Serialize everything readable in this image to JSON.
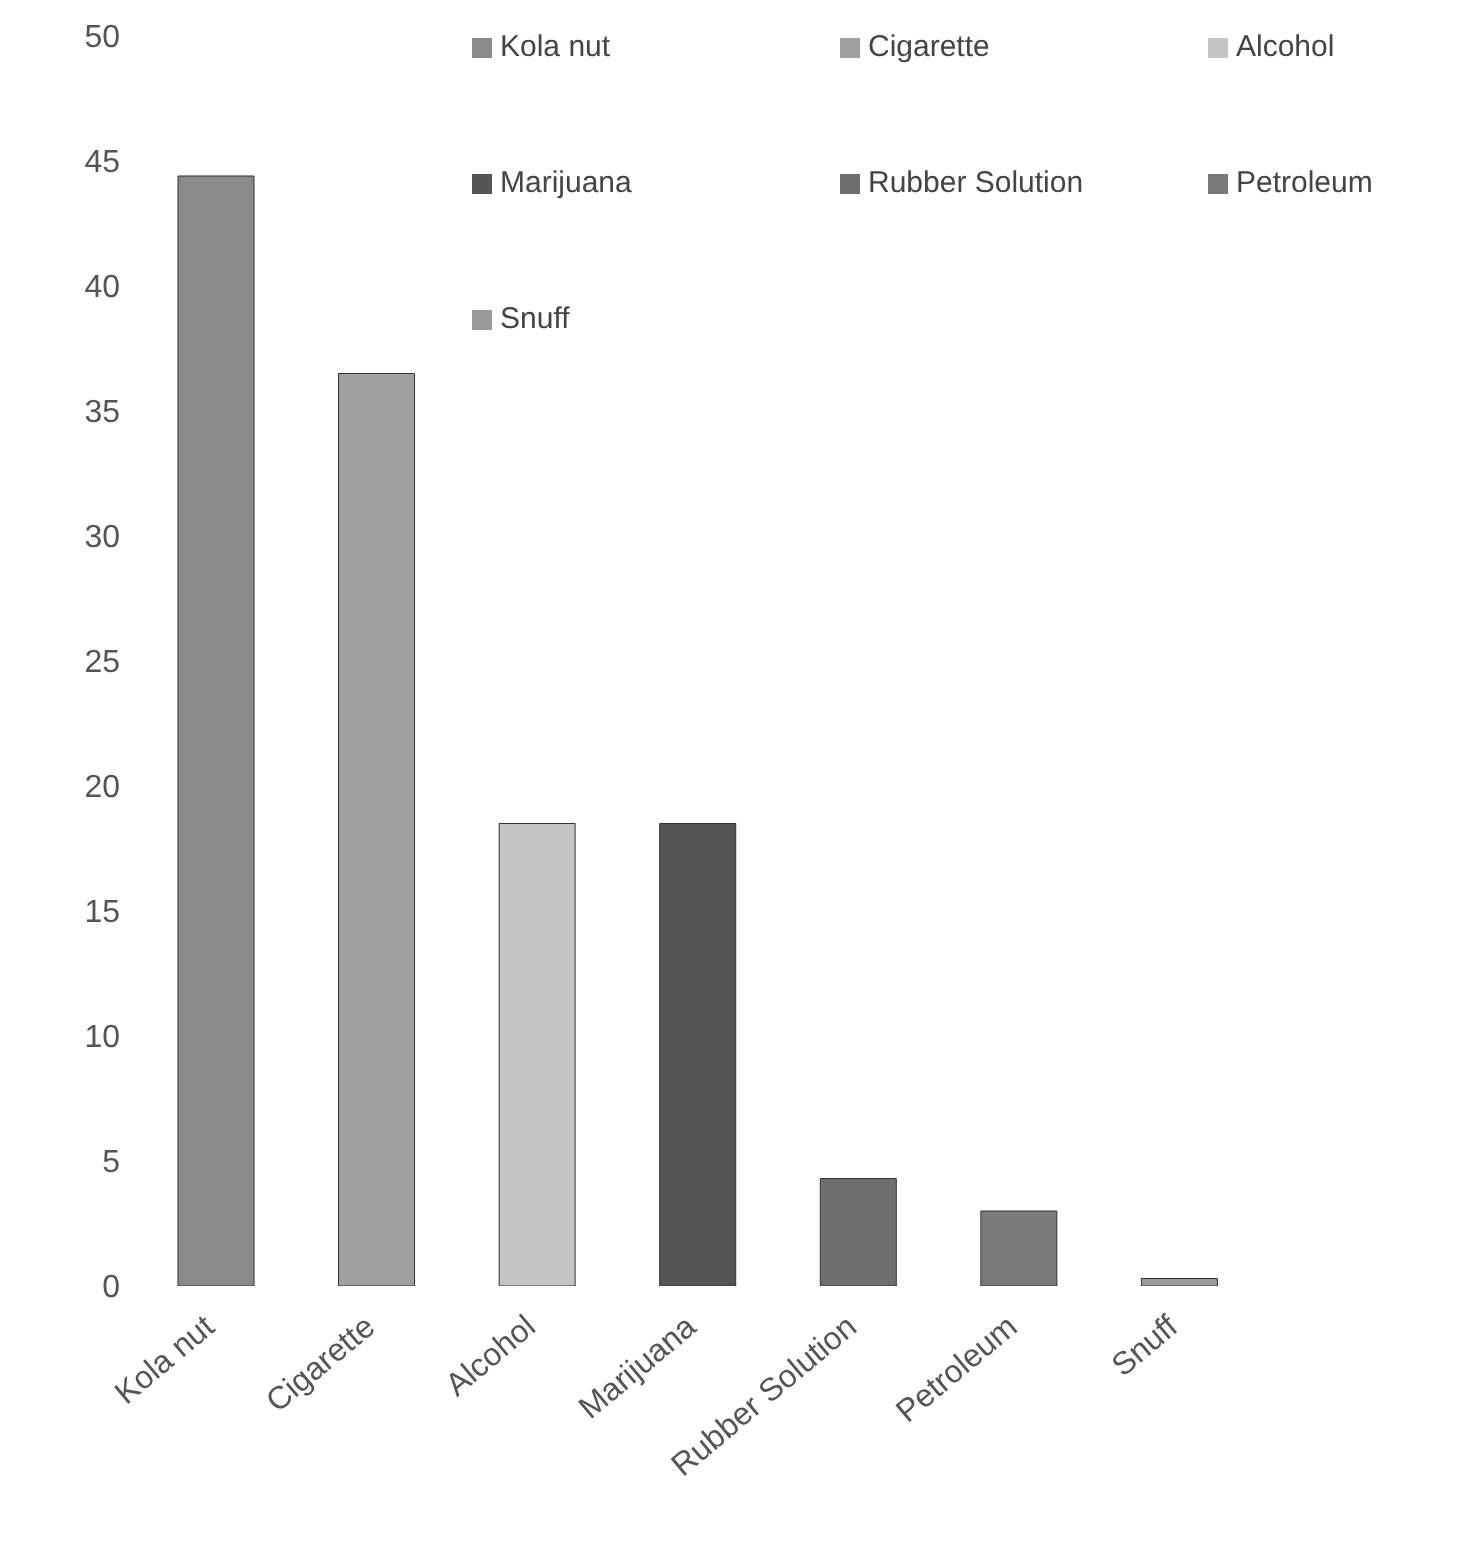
{
  "chart_data": {
    "type": "bar",
    "stacked": true,
    "categories": [
      "Kola nut",
      "Cigarette",
      "Alcohol",
      "Marijuana",
      "Rubber Solution",
      "Petroleum",
      "Snuff"
    ],
    "series": [
      {
        "name": "Kola nut",
        "color": "#8a8a8a",
        "values": [
          44.4,
          null,
          null,
          null,
          null,
          null,
          null
        ]
      },
      {
        "name": "Cigarette",
        "color": "#a0a0a0",
        "values": [
          null,
          36.5,
          null,
          null,
          null,
          null,
          null
        ]
      },
      {
        "name": "Alcohol",
        "color": "#c4c4c4",
        "values": [
          null,
          null,
          18.5,
          null,
          null,
          null,
          null
        ]
      },
      {
        "name": "Marijuana",
        "color": "#555555",
        "values": [
          null,
          null,
          null,
          18.5,
          null,
          null,
          null
        ]
      },
      {
        "name": "Rubber Solution",
        "color": "#6e6e6e",
        "values": [
          null,
          null,
          null,
          null,
          4.3,
          null,
          null
        ]
      },
      {
        "name": "Petroleum",
        "color": "#7a7a7a",
        "values": [
          null,
          null,
          null,
          null,
          null,
          3,
          null
        ]
      },
      {
        "name": "Snuff",
        "color": "#9a9a9a",
        "values": [
          null,
          null,
          null,
          null,
          null,
          null,
          0.3
        ]
      }
    ],
    "ylim": [
      0,
      50
    ],
    "yticks": [
      0,
      5,
      10,
      15,
      20,
      25,
      30,
      35,
      40,
      45,
      50
    ],
    "legend": "top"
  }
}
